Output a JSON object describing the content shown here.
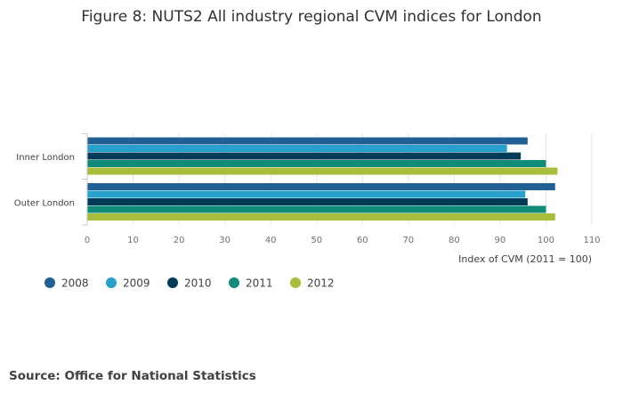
{
  "chart_data": {
    "type": "bar",
    "orientation": "horizontal",
    "title": "Figure 8: NUTS2 All industry regional CVM indices for London",
    "categories": [
      "Inner London",
      "Outer London"
    ],
    "series": [
      {
        "name": "2008",
        "color": "#206095",
        "values": [
          96,
          102
        ]
      },
      {
        "name": "2009",
        "color": "#27a0cc",
        "values": [
          91.5,
          95.5
        ]
      },
      {
        "name": "2010",
        "color": "#003c57",
        "values": [
          94.5,
          96
        ]
      },
      {
        "name": "2011",
        "color": "#118c7b",
        "values": [
          100,
          100
        ]
      },
      {
        "name": "2012",
        "color": "#a8bd3a",
        "values": [
          102.5,
          102
        ]
      }
    ],
    "xlim": [
      0,
      110
    ],
    "xticks": [
      "0",
      "10",
      "20",
      "30",
      "40",
      "50",
      "60",
      "70",
      "80",
      "90",
      "100",
      "110"
    ],
    "xlabel": "Index of CVM (2011 = 100)",
    "ylabel": "",
    "grid": true,
    "legend_position": "bottom-left"
  },
  "source": "Source: Office for National Statistics"
}
